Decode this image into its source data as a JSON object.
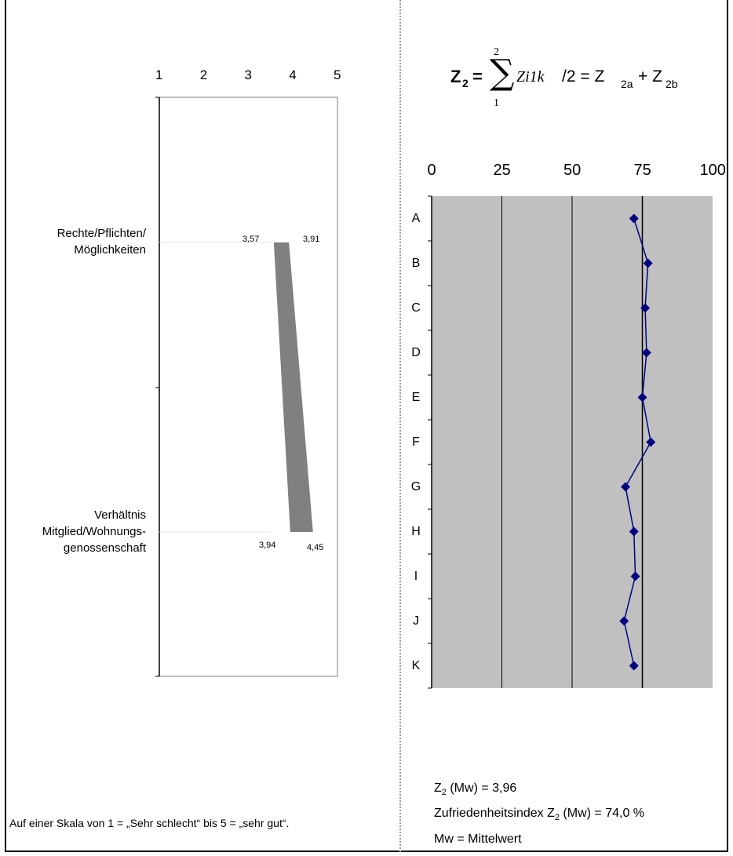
{
  "formula": {
    "z_symbol": "Z",
    "z_subscript": "2",
    "equals": "=",
    "sum_upper": "2",
    "sum_lower": "1",
    "term": "Zi1k",
    "divide": "/2 = Z",
    "sub_a": "2a",
    "plus": "+ Z",
    "sub_b": "2b"
  },
  "chart_data": [
    {
      "type": "bar",
      "title": "",
      "xlim": [
        1,
        5
      ],
      "x_ticks": [
        "1",
        "2",
        "3",
        "4",
        "5"
      ],
      "categories": [
        "Rechte/Pflichten/\nMöglichkeiten",
        "Verhältnis\nMitglied/Wohnungs-\ngenossenschaft"
      ],
      "ranges": [
        {
          "low": 3.57,
          "high": 3.91,
          "low_label": "3,57",
          "high_label": "3,91"
        },
        {
          "low": 3.94,
          "high": 4.45,
          "low_label": "3,94",
          "high_label": "4,45"
        }
      ],
      "bar_color": "#808080",
      "footnote": "Auf einer Skala von 1 = „Sehr schlecht“ bis 5 = „sehr gut“."
    },
    {
      "type": "line",
      "title": "",
      "xlim": [
        0,
        100
      ],
      "x_ticks": [
        "0",
        "25",
        "50",
        "75",
        "100"
      ],
      "reference_line": 75,
      "categories": [
        "A",
        "B",
        "C",
        "D",
        "E",
        "F",
        "G",
        "H",
        "I",
        "J",
        "K"
      ],
      "values": [
        72,
        77,
        76,
        76.5,
        75,
        78,
        69,
        72,
        72.5,
        68.5,
        72
      ],
      "line_color": "#000080",
      "plot_bg": "#c0c0c0",
      "grid": true
    }
  ],
  "notes": {
    "mw_line": {
      "pre": "Z",
      "sub": "2",
      "post": " (Mw) = 3,96"
    },
    "index_line": {
      "pre": "Zufriedenheitsindex Z",
      "sub": "2",
      "post": " (Mw) = 74,0 %"
    },
    "legend_line": "Mw = Mittelwert"
  }
}
